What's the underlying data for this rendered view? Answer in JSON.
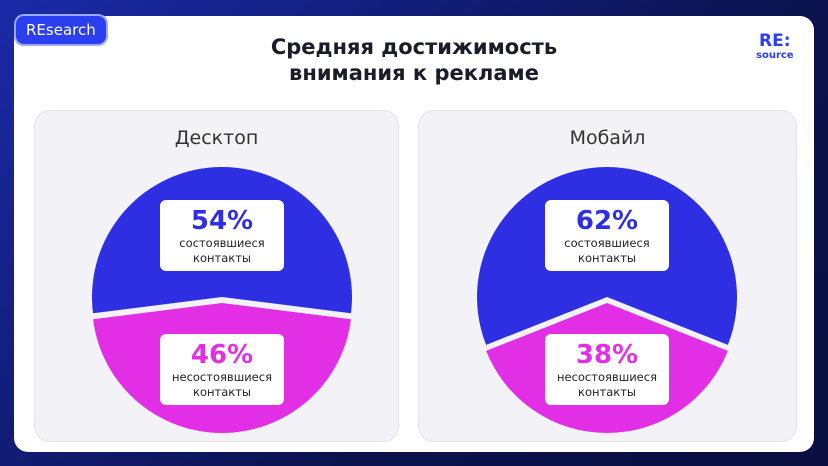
{
  "header": {
    "badge": "REsearch",
    "title": "Средняя достижимость внимания к рекламе",
    "logo_top": "RE:",
    "logo_bottom": "source"
  },
  "chart_data": [
    {
      "type": "pie",
      "title": "Десктоп",
      "categories": [
        "состоявшиеся контакты",
        "несостоявшиеся контакты"
      ],
      "values": [
        54,
        46
      ],
      "value_labels": [
        "54%",
        "46%"
      ],
      "colors": [
        "#2e2fe2",
        "#e22fe6"
      ]
    },
    {
      "type": "pie",
      "title": "Мобайл",
      "categories": [
        "состоявшиеся контакты",
        "несостоявшиеся контакты"
      ],
      "values": [
        62,
        38
      ],
      "value_labels": [
        "62%",
        "38%"
      ],
      "colors": [
        "#2e2fe2",
        "#e22fe6"
      ]
    }
  ]
}
